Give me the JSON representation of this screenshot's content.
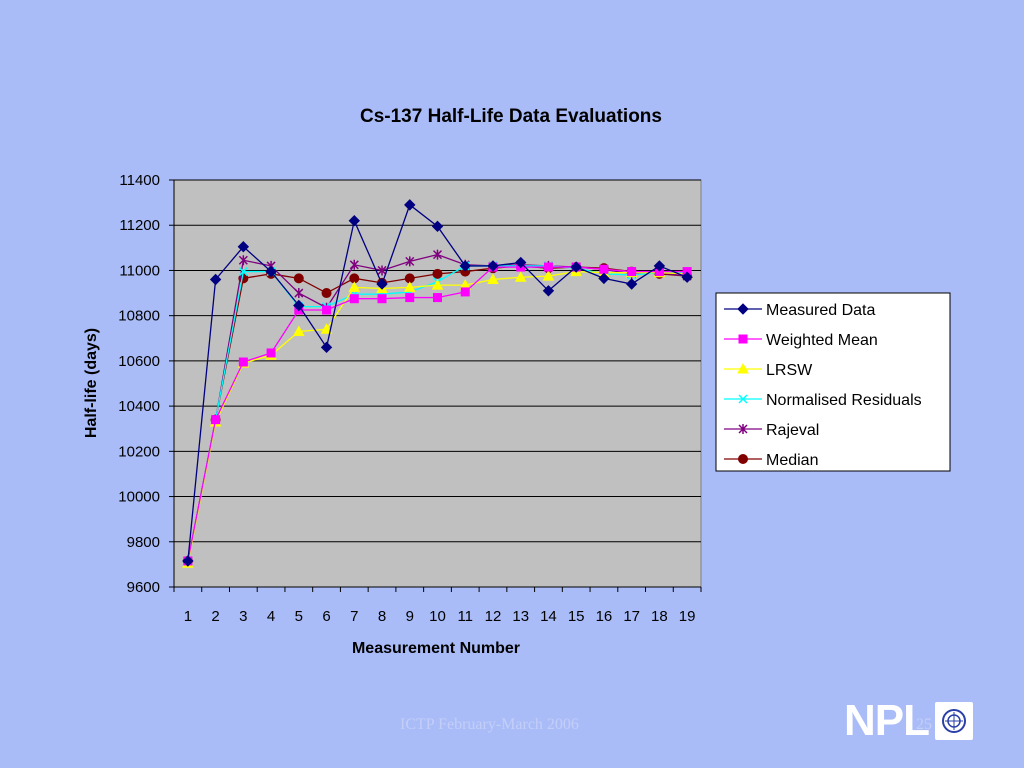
{
  "slide": {
    "footer": "ICTP February-March 2006",
    "page_number": "25",
    "logo_text": "NPL",
    "logo_icon": "npl-crest-icon",
    "background": "#aabcf8"
  },
  "chart_data": {
    "type": "line",
    "title": "Cs-137 Half-Life Data Evaluations",
    "xlabel": "Measurement Number",
    "ylabel": "Half-life (days)",
    "x": [
      1,
      2,
      3,
      4,
      5,
      6,
      7,
      8,
      9,
      10,
      11,
      12,
      13,
      14,
      15,
      16,
      17,
      18,
      19
    ],
    "ylim": [
      9600,
      11400
    ],
    "yticks": [
      9600,
      9800,
      10000,
      10200,
      10400,
      10600,
      10800,
      11000,
      11200,
      11400
    ],
    "grid": true,
    "plot_background": "#c0c0c0",
    "legend_position": "right",
    "series": [
      {
        "name": "Measured Data",
        "color": "#000080",
        "marker": "diamond",
        "values": [
          9715,
          10960,
          11105,
          10995,
          10845,
          10660,
          11220,
          10940,
          11290,
          11195,
          11020,
          11020,
          11035,
          10910,
          11015,
          10965,
          10940,
          11020,
          10970
        ]
      },
      {
        "name": "Weighted Mean",
        "color": "#ff00ff",
        "marker": "square",
        "values": [
          9715,
          10340,
          10595,
          10635,
          10825,
          10825,
          10875,
          10875,
          10880,
          10880,
          10905,
          11015,
          11015,
          11015,
          11015,
          11005,
          10995,
          10995,
          10995
        ]
      },
      {
        "name": "LRSW",
        "color": "#ffff00",
        "marker": "triangle",
        "values": [
          9705,
          10330,
          10590,
          10625,
          10730,
          10740,
          10925,
          10920,
          10925,
          10935,
          10935,
          10960,
          10970,
          10975,
          10995,
          10990,
          10990,
          10990,
          10985
        ]
      },
      {
        "name": "Normalised Residuals",
        "color": "#00ffff",
        "marker": "x",
        "values": [
          9715,
          10340,
          10995,
          10995,
          10840,
          10840,
          10895,
          10895,
          10905,
          10950,
          11020,
          11020,
          11020,
          11020,
          11010,
          10985,
          10980,
          10990,
          10990
        ]
      },
      {
        "name": "Rajeval",
        "color": "#800080",
        "marker": "star",
        "values": [
          9715,
          10340,
          11045,
          11020,
          10900,
          10835,
          11025,
          11000,
          11040,
          11070,
          11025,
          11020,
          11025,
          11020,
          11015,
          11005,
          10985,
          10990,
          10975
        ]
      },
      {
        "name": "Median",
        "color": "#800000",
        "marker": "circle",
        "values": [
          9715,
          10340,
          10965,
          10985,
          10965,
          10900,
          10965,
          10945,
          10965,
          10985,
          10995,
          11010,
          11020,
          11010,
          11015,
          11010,
          10995,
          10985,
          10975
        ]
      }
    ]
  }
}
